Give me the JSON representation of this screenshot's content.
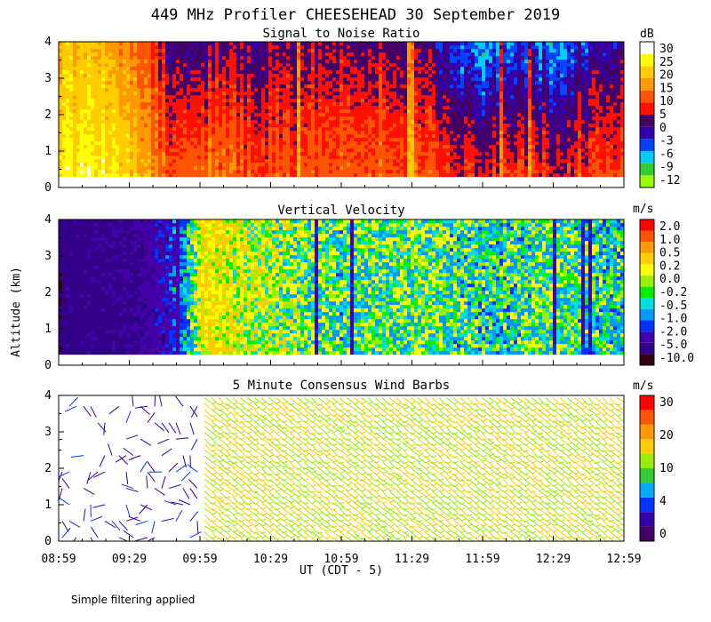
{
  "title": "449 MHz Profiler CHEESEHEAD 30 September 2019",
  "ylabel": "Altitude (km)",
  "xlabel": "UT  (CDT - 5)",
  "footnote": "Simple filtering applied",
  "x_ticks": [
    "08:59",
    "09:29",
    "09:59",
    "10:29",
    "10:59",
    "11:29",
    "11:59",
    "12:29",
    "12:59"
  ],
  "y_ticks": [
    "0",
    "1",
    "2",
    "3",
    "4"
  ],
  "chart_data": [
    {
      "type": "heatmap",
      "title": "Signal to Noise Ratio",
      "unit": "dB",
      "xlim": [
        "08:59",
        "12:59"
      ],
      "ylim": [
        0,
        4
      ],
      "data_range_km": [
        0.3,
        4.0
      ],
      "colorbar": {
        "colors": [
          "#99ff00",
          "#33cc33",
          "#00ccff",
          "#0044ff",
          "#3300aa",
          "#440066",
          "#ff1100",
          "#ff5500",
          "#ff9900",
          "#ffcc00",
          "#ffff00",
          "#ffffff"
        ],
        "labels": [
          "-12",
          "-9",
          "-6",
          "-3",
          "0",
          "5",
          "10",
          "15",
          "20",
          "25",
          "30"
        ]
      },
      "pattern": [
        {
          "time": "08:59",
          "snr_low_db": 22,
          "snr_high_db": 17
        },
        {
          "time": "09:15",
          "snr_low_db": 25,
          "snr_high_db": 18
        },
        {
          "time": "09:29",
          "snr_low_db": 20,
          "snr_high_db": 12
        },
        {
          "time": "09:45",
          "snr_low_db": 10,
          "snr_high_db": 2
        },
        {
          "time": "09:59",
          "snr_low_db": 12,
          "snr_high_db": 0
        },
        {
          "time": "10:29",
          "snr_low_db": 8,
          "snr_high_db": 1
        },
        {
          "time": "10:59",
          "snr_low_db": 10,
          "snr_high_db": 2
        },
        {
          "time": "11:29",
          "snr_low_db": 9,
          "snr_high_db": 1
        },
        {
          "time": "11:59",
          "snr_low_db": 5,
          "snr_high_db": -8
        },
        {
          "time": "12:29",
          "snr_low_db": 6,
          "snr_high_db": -6
        },
        {
          "time": "12:59",
          "snr_low_db": 9,
          "snr_high_db": 0
        }
      ]
    },
    {
      "type": "heatmap",
      "title": "Vertical Velocity",
      "unit": "m/s",
      "xlim": [
        "08:59",
        "12:59"
      ],
      "ylim": [
        0,
        4
      ],
      "data_range_km": [
        0.3,
        4.0
      ],
      "colorbar": {
        "colors": [
          "#330011",
          "#330088",
          "#4400aa",
          "#0033ff",
          "#0099ff",
          "#00dddd",
          "#00ee00",
          "#99ee00",
          "#ffff00",
          "#ffcc00",
          "#ff9900",
          "#ff5500",
          "#ff0000"
        ],
        "labels": [
          "-10.0",
          "-5.0",
          "-2.0",
          "-1.0",
          "-0.5",
          "-0.2",
          "0.0",
          "0.2",
          "0.5",
          "1.0",
          "2.0"
        ]
      },
      "pattern": [
        {
          "time": "08:59",
          "w_ms": -5.0
        },
        {
          "time": "09:29",
          "w_ms": -4.0
        },
        {
          "time": "09:45",
          "w_ms": -2.0
        },
        {
          "time": "09:59",
          "w_ms": 0.8
        },
        {
          "time": "10:29",
          "w_ms": 0.3
        },
        {
          "time": "10:59",
          "w_ms": -0.1
        },
        {
          "time": "11:29",
          "w_ms": 0.1
        },
        {
          "time": "11:59",
          "w_ms": -0.2
        },
        {
          "time": "12:29",
          "w_ms": 0.0
        },
        {
          "time": "12:59",
          "w_ms": -0.3
        }
      ]
    },
    {
      "type": "scatter",
      "title": "5 Minute Consensus Wind Barbs",
      "unit": "m/s",
      "xlim": [
        "08:59",
        "12:59"
      ],
      "ylim": [
        0,
        4
      ],
      "colorbar": {
        "colors": [
          "#440066",
          "#3300aa",
          "#0033ff",
          "#00aaff",
          "#33cc33",
          "#99ee00",
          "#ffcc00",
          "#ff9900",
          "#ff5500",
          "#ff0000"
        ],
        "labels": [
          "0",
          "4",
          "10",
          "20",
          "30"
        ]
      },
      "wind_regimes": [
        {
          "period": [
            "08:59",
            "09:59"
          ],
          "speed_ms": [
            2,
            8
          ]
        },
        {
          "period": [
            "09:59",
            "12:59"
          ],
          "speed_ms": [
            16,
            22
          ]
        }
      ]
    }
  ]
}
